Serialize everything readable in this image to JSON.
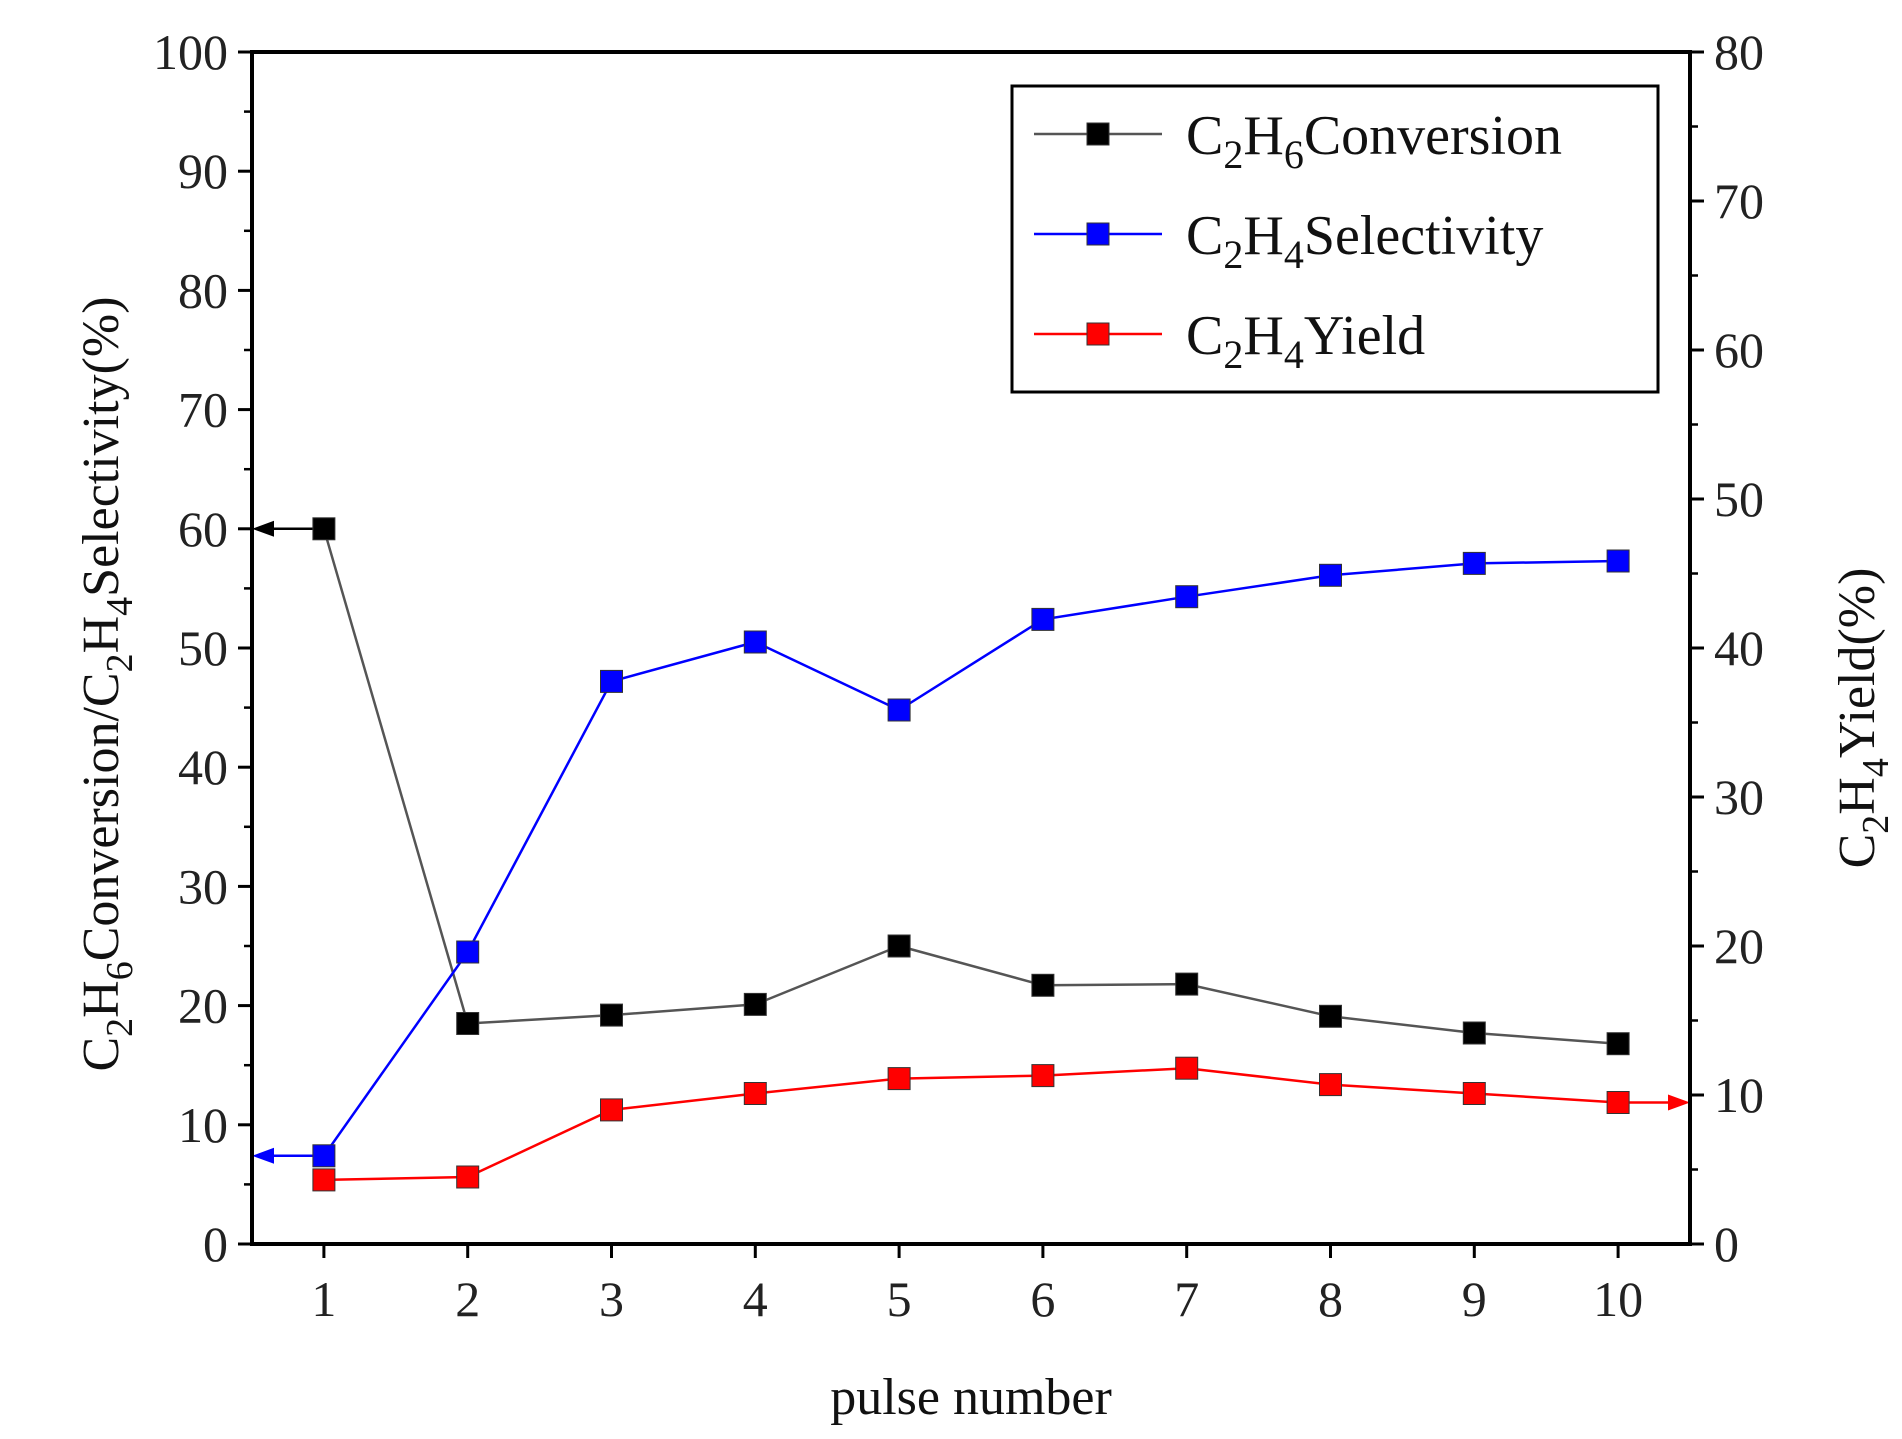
{
  "chart_data": {
    "type": "line",
    "x": [
      1,
      2,
      3,
      4,
      5,
      6,
      7,
      8,
      9,
      10
    ],
    "xlabel": "pulse number",
    "xlim": [
      0.5,
      10.5
    ],
    "x_ticks": [
      "1",
      "2",
      "3",
      "4",
      "5",
      "6",
      "7",
      "8",
      "9",
      "10"
    ],
    "y_left": {
      "label_parts": [
        "C",
        "2",
        "H",
        "6",
        "Conversion/C",
        "2",
        "H",
        "4",
        "Selectivity(%)"
      ],
      "label_text": "C2H6Conversion/C2H4Selectivity(%)",
      "lim": [
        0,
        100
      ],
      "ticks": [
        "0",
        "10",
        "20",
        "30",
        "40",
        "50",
        "60",
        "70",
        "80",
        "90",
        "100"
      ]
    },
    "y_right": {
      "label_parts": [
        "C",
        "2",
        "H",
        "4",
        "Yield(%)"
      ],
      "label_text": "C2H4Yield(%)",
      "lim": [
        0,
        80
      ],
      "ticks": [
        "0",
        "10",
        "20",
        "30",
        "40",
        "50",
        "60",
        "70",
        "80"
      ]
    },
    "series": [
      {
        "name": "C2H6Conversion",
        "legend_parts": [
          "C",
          "2",
          "H",
          "6",
          "Conversion"
        ],
        "axis": "left",
        "color": "#000000",
        "line_color": "#555555",
        "values": [
          60.0,
          18.5,
          19.2,
          20.1,
          25.0,
          21.7,
          21.8,
          19.1,
          17.7,
          16.8
        ]
      },
      {
        "name": "C2H4Selectivity",
        "legend_parts": [
          "C",
          "2",
          "H",
          "4",
          "Selectivity"
        ],
        "axis": "left",
        "color": "#0000ff",
        "line_color": "#0000ff",
        "values": [
          7.4,
          24.5,
          47.2,
          50.5,
          44.8,
          52.4,
          54.3,
          56.1,
          57.1,
          57.3
        ]
      },
      {
        "name": "C2H4Yield",
        "legend_parts": [
          "C",
          "2",
          "H",
          "4",
          "Yield"
        ],
        "axis": "right",
        "color": "#ff0000",
        "line_color": "#ff0000",
        "values": [
          4.3,
          4.5,
          9.0,
          10.1,
          11.1,
          11.3,
          11.8,
          10.7,
          10.1,
          9.5
        ]
      }
    ],
    "legend_position": "top-right",
    "grid": false,
    "axis_indicators": [
      {
        "series": "C2H6Conversion",
        "direction": "left",
        "color": "#000000"
      },
      {
        "series": "C2H4Selectivity",
        "direction": "left",
        "color": "#0000ff"
      },
      {
        "series": "C2H4Yield",
        "direction": "right",
        "color": "#ff0000"
      }
    ]
  }
}
